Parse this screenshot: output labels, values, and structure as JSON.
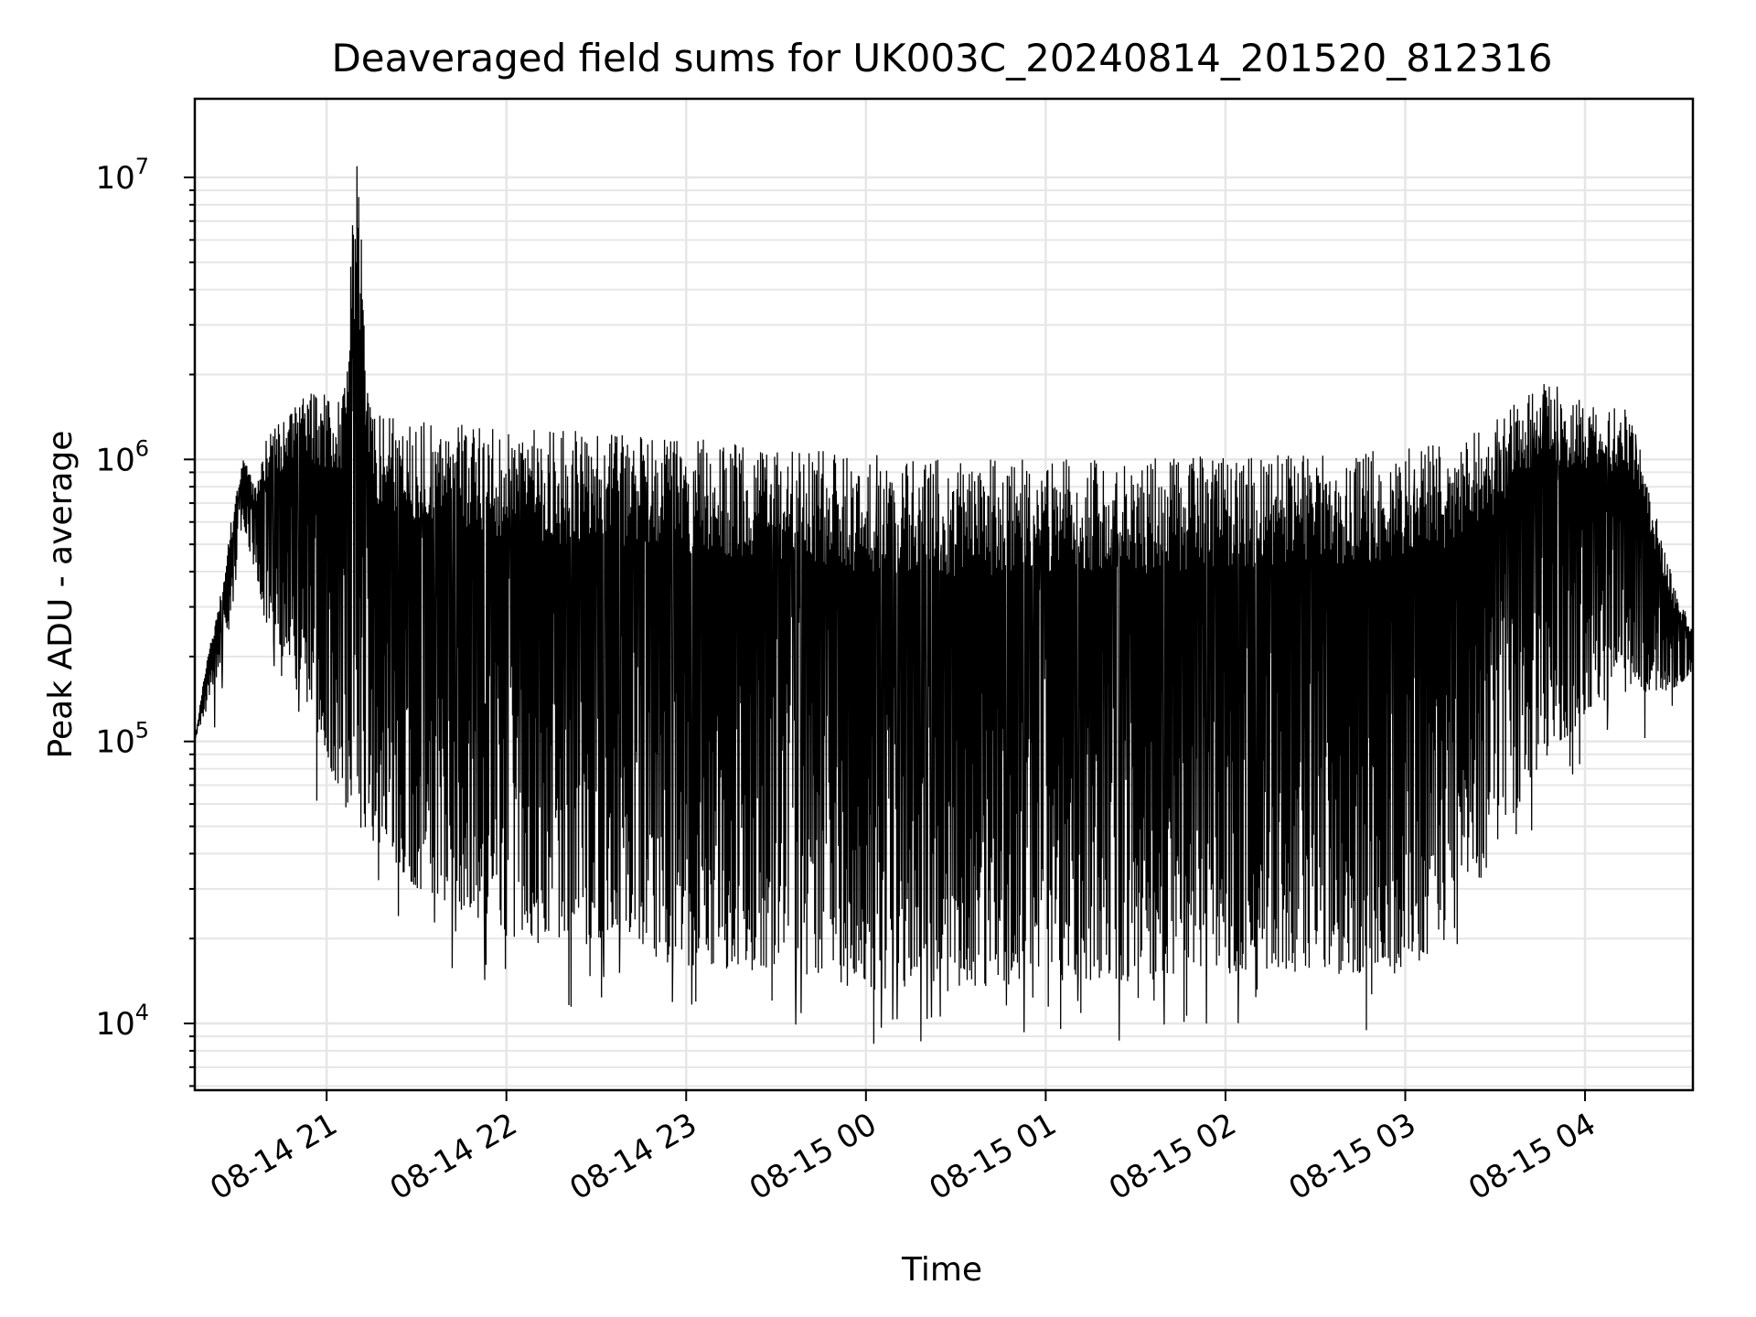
{
  "chart_data": {
    "type": "line",
    "title": "Deaveraged field sums for UK003C_20240814_201520_812316",
    "xlabel": "Time",
    "ylabel": "Peak ADU - average",
    "yscale": "log",
    "ylim": [
      5800,
      19000000
    ],
    "xlim": [
      "08-14 20:16",
      "08-15 04:36"
    ],
    "grid": true,
    "line_color": "#000000",
    "grid_color": "#e6e6e6",
    "x_ticks": [
      "08-14 21",
      "08-14 22",
      "08-14 23",
      "08-15 00",
      "08-15 01",
      "08-15 02",
      "08-15 03",
      "08-15 04"
    ],
    "y_ticks": [
      {
        "value": 10000,
        "base": "10",
        "exp": "4"
      },
      {
        "value": 100000,
        "base": "10",
        "exp": "5"
      },
      {
        "value": 1000000,
        "base": "10",
        "exp": "6"
      },
      {
        "value": 10000000,
        "base": "10",
        "exp": "7"
      }
    ],
    "series": [
      {
        "x": [
          "08-14 20:16",
          "08-14 20:20",
          "08-14 20:24",
          "08-14 20:28",
          "08-14 20:32",
          "08-14 20:36",
          "08-14 20:40",
          "08-14 20:45",
          "08-14 20:50",
          "08-14 20:55",
          "08-14 21:00",
          "08-14 21:05",
          "08-14 21:10",
          "08-14 21:15",
          "08-14 21:20",
          "08-14 21:30",
          "08-14 21:45",
          "08-14 22:00",
          "08-14 22:30",
          "08-14 23:00",
          "08-14 23:30",
          "08-15 00:00",
          "08-15 00:30",
          "08-15 01:00",
          "08-15 01:30",
          "08-15 02:00",
          "08-15 02:30",
          "08-15 03:00",
          "08-15 03:15",
          "08-15 03:30",
          "08-15 03:45",
          "08-15 04:00",
          "08-15 04:15",
          "08-15 04:30",
          "08-15 04:36"
        ],
        "high": [
          100000,
          200000,
          300000,
          600000,
          1050000,
          800000,
          1200000,
          1400000,
          1600000,
          1750000,
          1800000,
          1700000,
          12000000,
          1500000,
          1450000,
          1400000,
          1350000,
          1300000,
          1250000,
          1200000,
          1100000,
          1050000,
          1000000,
          1000000,
          1000000,
          1050000,
          1050000,
          1100000,
          1200000,
          1400000,
          2000000,
          1600000,
          1500000,
          350000,
          250000
        ],
        "low": [
          100000,
          130000,
          180000,
          250000,
          600000,
          400000,
          250000,
          200000,
          150000,
          110000,
          90000,
          60000,
          50000,
          45000,
          40000,
          30000,
          25000,
          20000,
          18000,
          16000,
          15000,
          13000,
          13000,
          14000,
          14000,
          15000,
          15000,
          15000,
          20000,
          40000,
          80000,
          120000,
          150000,
          150000,
          180000
        ]
      }
    ]
  }
}
